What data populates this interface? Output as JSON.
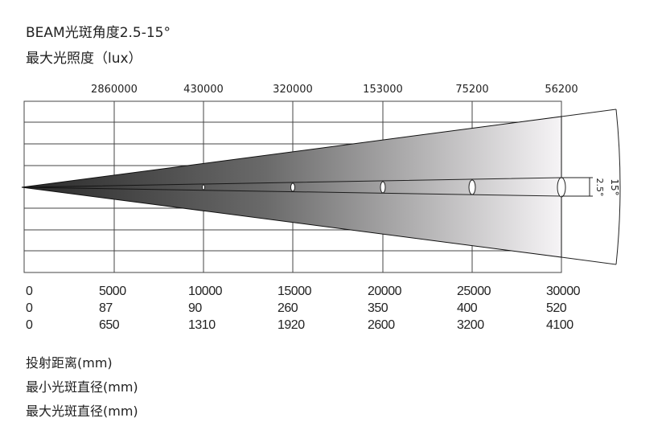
{
  "title": "BEAM光斑角度2.5-15°",
  "subtitle": "最大光照度（lux）",
  "lux_values": [
    "2860000",
    "430000",
    "320000",
    "153000",
    "75200",
    "56200"
  ],
  "angles": {
    "narrow": "2.5°",
    "wide": "15°"
  },
  "distance_row": [
    "0",
    "5000",
    "10000",
    "15000",
    "20000",
    "25000",
    "30000"
  ],
  "min_diameter_row": [
    "0",
    "87",
    "90",
    "260",
    "350",
    "400",
    "520"
  ],
  "max_diameter_row": [
    "0",
    "650",
    "1310",
    "1920",
    "2600",
    "3200",
    "4100"
  ],
  "legend": {
    "distance": "投射距离(mm)",
    "min_diameter": "最小光斑直径(mm)",
    "max_diameter": "最大光斑直径(mm)"
  }
}
